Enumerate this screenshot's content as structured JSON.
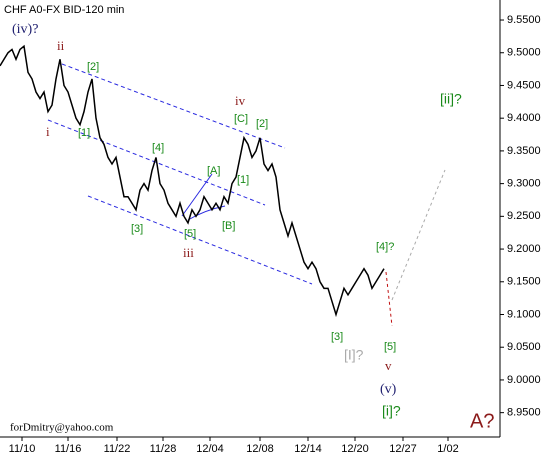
{
  "chart_data": {
    "type": "line",
    "title": "CHF A0-FX BID-120 min",
    "annotations": [
      "forDmitry@yahoo.com",
      "(iv)?",
      "ii",
      "[2]",
      "i",
      "[1]",
      "iv",
      "[C]",
      "[2]",
      "[4]",
      "[A]",
      "[1]",
      "[3]",
      "[5]",
      "[B]",
      "iii",
      "[4]?",
      "[3]",
      "[I]?",
      "[5]",
      "v",
      "(v)",
      "[i]?",
      "[ii]?",
      "A?"
    ],
    "color": "#000000",
    "values": [
      9.48,
      9.49,
      9.5,
      9.505,
      9.49,
      9.505,
      9.51,
      9.47,
      9.46,
      9.44,
      9.43,
      9.44,
      9.41,
      9.42,
      9.46,
      9.49,
      9.45,
      9.44,
      9.42,
      9.4,
      9.39,
      9.41,
      9.44,
      9.46,
      9.4,
      9.37,
      9.36,
      9.34,
      9.33,
      9.34,
      9.31,
      9.28,
      9.28,
      9.27,
      9.26,
      9.29,
      9.3,
      9.29,
      9.32,
      9.34,
      9.3,
      9.29,
      9.27,
      9.26,
      9.25,
      9.27,
      9.25,
      9.24,
      9.26,
      9.25,
      9.26,
      9.28,
      9.27,
      9.26,
      9.27,
      9.26,
      9.28,
      9.27,
      9.3,
      9.31,
      9.34,
      9.37,
      9.36,
      9.34,
      9.35,
      9.37,
      9.33,
      9.32,
      9.33,
      9.31,
      9.26,
      9.24,
      9.22,
      9.24,
      9.22,
      9.2,
      9.18,
      9.17,
      9.18,
      9.17,
      9.15,
      9.14,
      9.14,
      9.12,
      9.1,
      9.12,
      9.14,
      9.13,
      9.14,
      9.15,
      9.16,
      9.17,
      9.16,
      9.14,
      9.15,
      9.16,
      9.17
    ],
    "xlim": [
      0,
      125
    ],
    "xticks": [
      {
        "value": 5.5,
        "label": "11/10"
      },
      {
        "value": 17,
        "label": "11/16"
      },
      {
        "value": 29.25,
        "label": "11/22"
      },
      {
        "value": 40.75,
        "label": "11/28"
      },
      {
        "value": 52.5,
        "label": "12/04"
      },
      {
        "value": 65,
        "label": "12/08"
      },
      {
        "value": 77,
        "label": "12/14"
      },
      {
        "value": 88.75,
        "label": "12/20"
      },
      {
        "value": 100.75,
        "label": "12/27"
      },
      {
        "value": 112,
        "label": "1/02"
      }
    ],
    "ylim": [
      8.9128,
      9.5806
    ],
    "yticks": [
      {
        "value": 8.95,
        "label": "8.9500"
      },
      {
        "value": 9.0,
        "label": "9.0000"
      },
      {
        "value": 9.05,
        "label": "9.0500"
      },
      {
        "value": 9.1,
        "label": "9.1000"
      },
      {
        "value": 9.15,
        "label": "9.1500"
      },
      {
        "value": 9.2,
        "label": "9.2000"
      },
      {
        "value": 9.25,
        "label": "9.2500"
      },
      {
        "value": 9.3,
        "label": "9.3000"
      },
      {
        "value": 9.35,
        "label": "9.3500"
      },
      {
        "value": 9.4,
        "label": "9.4000"
      },
      {
        "value": 9.45,
        "label": "9.4500"
      },
      {
        "value": 9.5,
        "label": "9.5000"
      },
      {
        "value": 9.55,
        "label": "9.5500"
      }
    ]
  }
}
